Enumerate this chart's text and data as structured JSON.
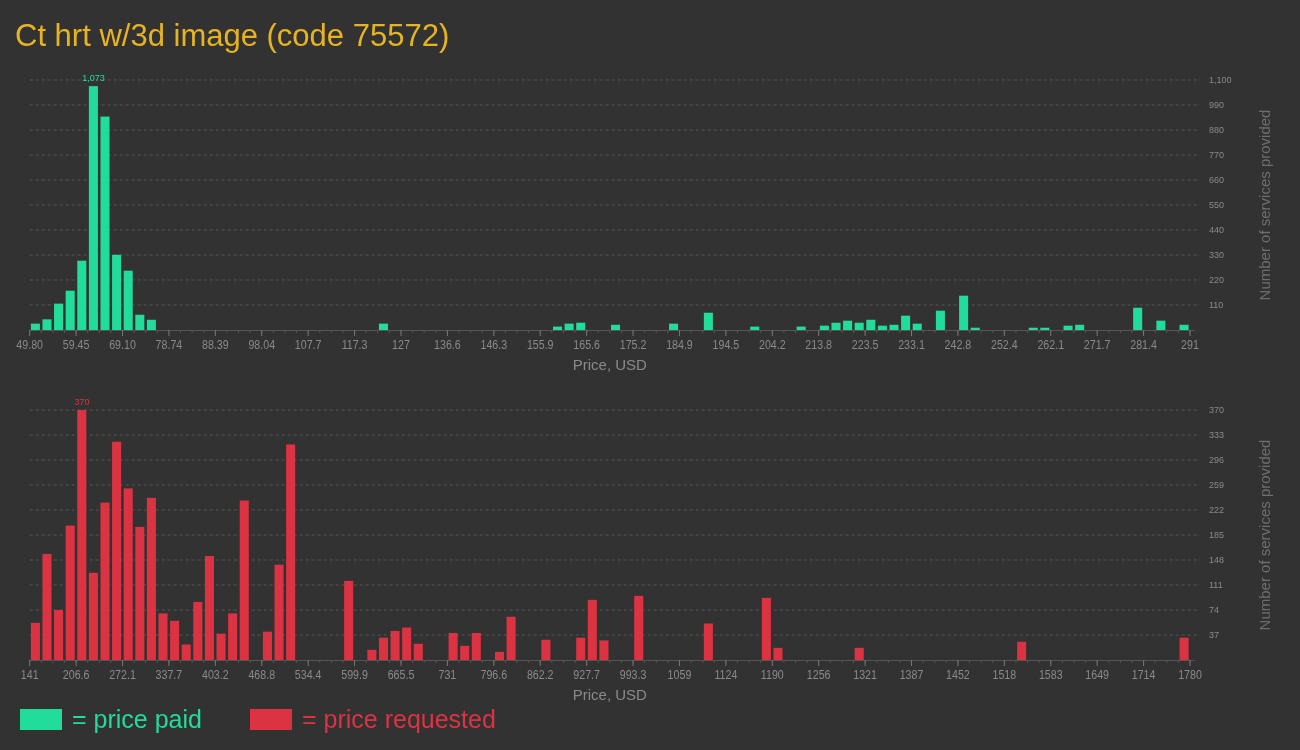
{
  "chart_data": [
    {
      "type": "histogram",
      "title": "Ct hrt w/3d image (code 75572)",
      "xlabel": "Price, USD",
      "ylabel": "Number of services provided",
      "grid": "y",
      "legend": "bottom",
      "xlim": [
        49.8,
        291
      ],
      "bins": [
        49.8,
        52.212,
        54.624,
        57.036,
        59.448,
        61.86,
        64.272,
        66.684,
        69.096,
        71.508,
        73.92,
        76.332,
        78.744,
        81.156,
        83.568,
        85.98,
        88.392,
        90.804,
        93.216,
        95.628,
        98.04,
        100.452,
        102.864,
        105.276,
        107.688,
        110.1,
        112.512,
        114.924,
        117.336,
        119.748,
        122.16,
        124.572,
        126.984,
        129.396,
        131.808,
        134.22,
        136.632,
        139.044,
        141.456,
        143.868,
        146.28,
        148.692,
        151.104,
        153.516,
        155.928,
        158.34,
        160.752,
        163.164,
        165.576,
        167.988,
        170.4,
        172.812,
        175.224,
        177.636,
        180.048,
        182.46,
        184.872,
        187.284,
        189.696,
        192.108,
        194.52,
        196.932,
        199.344,
        201.756,
        204.168,
        206.58,
        208.992,
        211.404,
        213.816,
        216.228,
        218.64,
        221.052,
        223.464,
        225.876,
        228.288,
        230.7,
        233.112,
        235.524,
        237.936,
        240.348,
        242.76,
        245.172,
        247.584,
        249.996,
        252.408,
        254.82,
        257.232,
        259.644,
        262.056,
        264.468,
        266.88,
        269.292,
        271.704,
        274.116,
        276.528,
        278.94,
        281.352,
        283.764,
        286.176,
        288.588,
        291
      ],
      "series": [
        {
          "name": "= price paid",
          "color": "#21dc9b",
          "values": [
            28,
            47,
            116,
            173,
            305,
            1073,
            939,
            331,
            261,
            67,
            45,
            0,
            0,
            0,
            0,
            0,
            0,
            0,
            0,
            0,
            0,
            0,
            0,
            0,
            0,
            0,
            0,
            0,
            0,
            0,
            28,
            0,
            0,
            0,
            0,
            0,
            0,
            0,
            0,
            0,
            0,
            0,
            0,
            0,
            0,
            15,
            28,
            32,
            0,
            0,
            23,
            0,
            0,
            0,
            0,
            28,
            0,
            0,
            76,
            0,
            0,
            0,
            15,
            0,
            0,
            0,
            15,
            0,
            19,
            32,
            41,
            32,
            45,
            19,
            23,
            63,
            28,
            0,
            85,
            0,
            151,
            10,
            0,
            0,
            0,
            0,
            10,
            10,
            0,
            19,
            23,
            0,
            0,
            0,
            0,
            98,
            0,
            41,
            0,
            23
          ],
          "value_labels": [
            null,
            null,
            null,
            null,
            null,
            "1,073",
            null,
            null,
            null,
            null,
            null,
            null,
            null,
            null,
            null,
            null,
            null,
            null,
            null,
            null,
            null,
            null,
            null,
            null,
            null,
            null,
            null,
            null,
            null,
            null,
            null,
            null,
            null,
            null,
            null,
            null,
            null,
            null,
            null,
            null,
            null,
            null,
            null,
            null,
            null,
            null,
            null,
            null,
            null,
            null,
            null,
            null,
            null,
            null,
            null,
            null,
            null,
            null,
            null,
            null,
            null,
            null,
            null,
            null,
            null,
            null,
            null,
            null,
            null,
            null,
            null,
            null,
            null,
            null,
            null,
            null,
            null,
            null,
            null,
            null,
            null,
            null,
            null,
            null,
            null,
            null,
            null,
            null,
            null,
            null,
            null,
            null,
            null,
            null,
            null,
            null,
            null,
            null,
            null,
            null
          ]
        }
      ],
      "ylim": [
        0,
        1100
      ],
      "yticks": [
        {
          "value": 110,
          "label": "110"
        },
        {
          "value": 220,
          "label": "220"
        },
        {
          "value": 330,
          "label": "330"
        },
        {
          "value": 440,
          "label": "440"
        },
        {
          "value": 550,
          "label": "550"
        },
        {
          "value": 660,
          "label": "660"
        },
        {
          "value": 770,
          "label": "770"
        },
        {
          "value": 880,
          "label": "880"
        },
        {
          "value": 990,
          "label": "990"
        },
        {
          "value": 1100,
          "label": "1,100"
        }
      ],
      "xticks": [
        {
          "value": 49.8,
          "label": "49.80"
        },
        {
          "value": 59.448,
          "label": "59.45"
        },
        {
          "value": 69.096,
          "label": "69.10"
        },
        {
          "value": 78.744,
          "label": "78.74"
        },
        {
          "value": 88.392,
          "label": "88.39"
        },
        {
          "value": 98.04,
          "label": "98.04"
        },
        {
          "value": 107.688,
          "label": "107.7"
        },
        {
          "value": 117.336,
          "label": "117.3"
        },
        {
          "value": 126.984,
          "label": "127"
        },
        {
          "value": 136.632,
          "label": "136.6"
        },
        {
          "value": 146.28,
          "label": "146.3"
        },
        {
          "value": 155.928,
          "label": "155.9"
        },
        {
          "value": 165.576,
          "label": "165.6"
        },
        {
          "value": 175.224,
          "label": "175.2"
        },
        {
          "value": 184.872,
          "label": "184.9"
        },
        {
          "value": 194.52,
          "label": "194.5"
        },
        {
          "value": 204.168,
          "label": "204.2"
        },
        {
          "value": 213.816,
          "label": "213.8"
        },
        {
          "value": 223.464,
          "label": "223.5"
        },
        {
          "value": 233.112,
          "label": "233.1"
        },
        {
          "value": 242.76,
          "label": "242.8"
        },
        {
          "value": 252.408,
          "label": "252.4"
        },
        {
          "value": 262.056,
          "label": "262.1"
        },
        {
          "value": 271.704,
          "label": "271.7"
        },
        {
          "value": 281.352,
          "label": "281.4"
        },
        291
      ]
    },
    {
      "type": "histogram",
      "xlabel": "Price, USD",
      "ylabel": "Number of services provided",
      "grid": "y",
      "legend": "bottom",
      "xlim": [
        141,
        1780
      ],
      "bins": [
        141,
        157.39,
        173.78,
        190.17,
        206.56,
        222.95,
        239.34,
        255.73,
        272.12,
        288.51,
        304.9,
        321.29,
        337.68,
        354.07,
        370.46,
        386.85,
        403.24,
        419.63,
        436.02,
        452.41,
        468.8,
        485.19,
        501.58,
        517.97,
        534.36,
        550.75,
        567.14,
        583.53,
        599.92,
        616.31,
        632.7,
        649.09,
        665.48,
        681.87,
        698.26,
        714.65,
        731.04,
        747.43,
        763.82,
        780.21,
        796.6,
        812.99,
        829.38,
        845.77,
        862.16,
        878.55,
        894.94,
        911.33,
        927.72,
        944.11,
        960.5,
        976.89,
        993.28,
        1009.67,
        1026.06,
        1042.45,
        1058.84,
        1075.23,
        1091.62,
        1108.01,
        1124.4,
        1140.79,
        1157.18,
        1173.57,
        1189.96,
        1206.35,
        1222.74,
        1239.13,
        1255.52,
        1271.91,
        1288.3,
        1304.69,
        1321.08,
        1337.47,
        1353.86,
        1370.25,
        1386.64,
        1403.03,
        1419.42,
        1435.81,
        1452.2,
        1468.59,
        1484.98,
        1501.37,
        1517.76,
        1534.15,
        1550.54,
        1566.93,
        1583.32,
        1599.71,
        1616.1,
        1632.49,
        1648.88,
        1665.27,
        1681.66,
        1698.05,
        1714.44,
        1730.83,
        1747.22,
        1763.61,
        1780
      ],
      "series": [
        {
          "name": "= price requested",
          "color": "#dc3343",
          "values": [
            55,
            157,
            74,
            199,
            370,
            129,
            233,
            323,
            254,
            197,
            240,
            69,
            58,
            23,
            86,
            154,
            39,
            69,
            236,
            0,
            42,
            141,
            319,
            0,
            0,
            0,
            0,
            117,
            0,
            15,
            33,
            43,
            48,
            24,
            0,
            0,
            40,
            21,
            40,
            0,
            12,
            64,
            0,
            0,
            30,
            0,
            0,
            33,
            89,
            29,
            0,
            0,
            95,
            0,
            0,
            0,
            0,
            0,
            54,
            0,
            0,
            0,
            0,
            92,
            18,
            0,
            0,
            0,
            0,
            0,
            0,
            18,
            0,
            0,
            0,
            0,
            0,
            0,
            0,
            0,
            0,
            0,
            0,
            0,
            0,
            27,
            0,
            0,
            0,
            0,
            0,
            0,
            0,
            0,
            0,
            0,
            0,
            0,
            0,
            33
          ],
          "value_labels": [
            null,
            null,
            null,
            null,
            "370",
            null,
            null,
            null,
            null,
            null,
            null,
            null,
            null,
            null,
            null,
            null,
            null,
            null,
            null,
            null,
            null,
            null,
            null,
            null,
            null,
            null,
            null,
            null,
            null,
            null,
            null,
            null,
            null,
            null,
            null,
            null,
            null,
            null,
            null,
            null,
            null,
            null,
            null,
            null,
            null,
            null,
            null,
            null,
            null,
            null,
            null,
            null,
            null,
            null,
            null,
            null,
            null,
            null,
            null,
            null,
            null,
            null,
            null,
            null,
            null,
            null,
            null,
            null,
            null,
            null,
            null,
            null,
            null,
            null,
            null,
            null,
            null,
            null,
            null,
            null,
            null,
            null,
            null,
            null,
            null,
            null,
            null,
            null,
            null,
            null,
            null,
            null,
            null,
            null,
            null,
            null,
            null,
            null,
            null,
            null
          ]
        }
      ],
      "ylim": [
        0,
        370
      ],
      "yticks": [
        37,
        74,
        111,
        148,
        185,
        222,
        259,
        296,
        333,
        370
      ],
      "xticks": [
        141,
        {
          "value": 206.56,
          "label": "206.6"
        },
        {
          "value": 272.12,
          "label": "272.1"
        },
        {
          "value": 337.68,
          "label": "337.7"
        },
        {
          "value": 403.24,
          "label": "403.2"
        },
        {
          "value": 468.8,
          "label": "468.8"
        },
        {
          "value": 534.36,
          "label": "534.4"
        },
        {
          "value": 599.92,
          "label": "599.9"
        },
        {
          "value": 665.48,
          "label": "665.5"
        },
        {
          "value": 731.04,
          "label": "731"
        },
        {
          "value": 796.6,
          "label": "796.6"
        },
        {
          "value": 862.16,
          "label": "862.2"
        },
        {
          "value": 927.72,
          "label": "927.7"
        },
        {
          "value": 993.28,
          "label": "993.3"
        },
        {
          "value": 1058.84,
          "label": "1059"
        },
        {
          "value": 1124.4,
          "label": "1124"
        },
        {
          "value": 1189.96,
          "label": "1190"
        },
        {
          "value": 1255.52,
          "label": "1256"
        },
        {
          "value": 1321.08,
          "label": "1321"
        },
        {
          "value": 1386.64,
          "label": "1387"
        },
        {
          "value": 1452.2,
          "label": "1452"
        },
        {
          "value": 1517.76,
          "label": "1518"
        },
        {
          "value": 1583.32,
          "label": "1583"
        },
        {
          "value": 1648.88,
          "label": "1649"
        },
        {
          "value": 1714.44,
          "label": "1714"
        },
        1780
      ]
    }
  ]
}
